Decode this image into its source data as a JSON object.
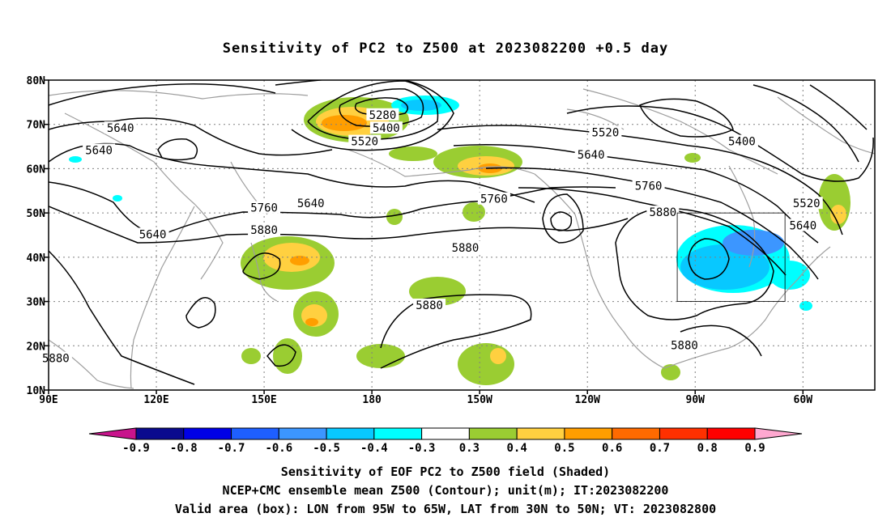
{
  "title": "Sensitivity of PC2 to Z500 at 2023082200 +0.5 day",
  "map": {
    "lat_labels": [
      "80N",
      "70N",
      "60N",
      "50N",
      "40N",
      "30N",
      "20N",
      "10N"
    ],
    "lon_labels": [
      "90E",
      "120E",
      "150E",
      "180",
      "150W",
      "120W",
      "90W",
      "60W"
    ],
    "lon_range": [
      90,
      320
    ],
    "lat_range": [
      10,
      80
    ],
    "box": {
      "lon_min": 265,
      "lon_max": 295,
      "lat_min": 30,
      "lat_max": 50
    },
    "contour_labels": [
      {
        "text": "5640",
        "lon": 110,
        "lat": 69
      },
      {
        "text": "5640",
        "lon": 104,
        "lat": 64
      },
      {
        "text": "5640",
        "lon": 119,
        "lat": 45
      },
      {
        "text": "5280",
        "lon": 183,
        "lat": 72
      },
      {
        "text": "5400",
        "lon": 184,
        "lat": 69
      },
      {
        "text": "5520",
        "lon": 178,
        "lat": 66
      },
      {
        "text": "5640",
        "lon": 163,
        "lat": 52
      },
      {
        "text": "5760",
        "lon": 150,
        "lat": 51
      },
      {
        "text": "5880",
        "lon": 150,
        "lat": 46
      },
      {
        "text": "5760",
        "lon": 214,
        "lat": 53
      },
      {
        "text": "5880",
        "lon": 206,
        "lat": 42
      },
      {
        "text": "5880",
        "lon": 196,
        "lat": 29
      },
      {
        "text": "5520",
        "lon": 245,
        "lat": 68
      },
      {
        "text": "5640",
        "lon": 241,
        "lat": 63
      },
      {
        "text": "5400",
        "lon": 283,
        "lat": 66
      },
      {
        "text": "5760",
        "lon": 257,
        "lat": 56
      },
      {
        "text": "5880",
        "lon": 261,
        "lat": 50
      },
      {
        "text": "5520",
        "lon": 301,
        "lat": 52
      },
      {
        "text": "5640",
        "lon": 300,
        "lat": 47
      },
      {
        "text": "5880",
        "lon": 92,
        "lat": 17
      },
      {
        "text": "5880",
        "lon": 267,
        "lat": 20
      }
    ]
  },
  "colorbar": {
    "labels": [
      "-0.9",
      "-0.8",
      "-0.7",
      "-0.6",
      "-0.5",
      "-0.4",
      "-0.3",
      "0.3",
      "0.4",
      "0.5",
      "0.6",
      "0.7",
      "0.8",
      "0.9"
    ],
    "colors": [
      "#0a0a8e",
      "#0000e6",
      "#1e5fff",
      "#3c96ff",
      "#08c8ff",
      "#00ffff",
      "#ffffff",
      "#9acd32",
      "#ffd040",
      "#ff9e00",
      "#ff6a00",
      "#ff3000",
      "#ff0000"
    ],
    "low_color": "#c8148c",
    "high_color": "#ffa8d0"
  },
  "captions": {
    "line1": "Sensitivity of EOF PC2 to Z500 field (Shaded)",
    "line2": "NCEP+CMC ensemble mean Z500 (Contour); unit(m); IT:2023082200",
    "line3": "Valid area (box): LON from 95W to 65W, LAT from 30N to 50N; VT: 2023082800"
  }
}
